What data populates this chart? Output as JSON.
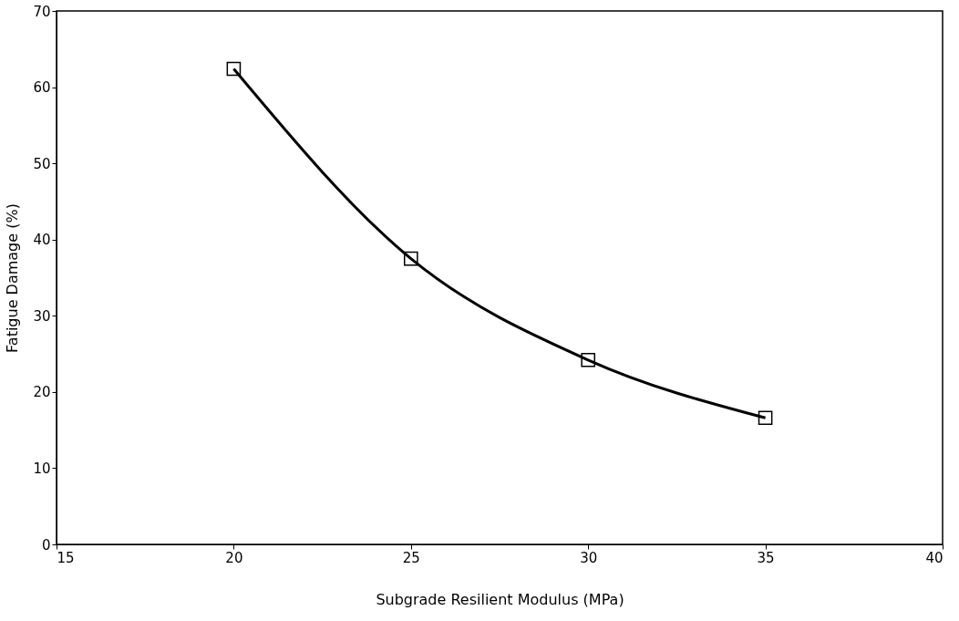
{
  "chart_data": {
    "type": "line",
    "xlabel": "Subgrade Resilient Modulus (MPa)",
    "ylabel": "Fatigue Damage (%)",
    "x": [
      20,
      25,
      30,
      35
    ],
    "series": [
      {
        "color": "#000000",
        "values": [
          62.4,
          37.5,
          24.2,
          16.6
        ]
      }
    ],
    "xlim": [
      15,
      40
    ],
    "xticks": [
      15,
      20,
      25,
      30,
      35,
      40
    ],
    "ylim": [
      0,
      70
    ],
    "yticks": [
      0,
      10,
      20,
      30,
      40,
      50,
      60,
      70
    ],
    "marker": "square",
    "line_style": "solid",
    "grid": false
  }
}
